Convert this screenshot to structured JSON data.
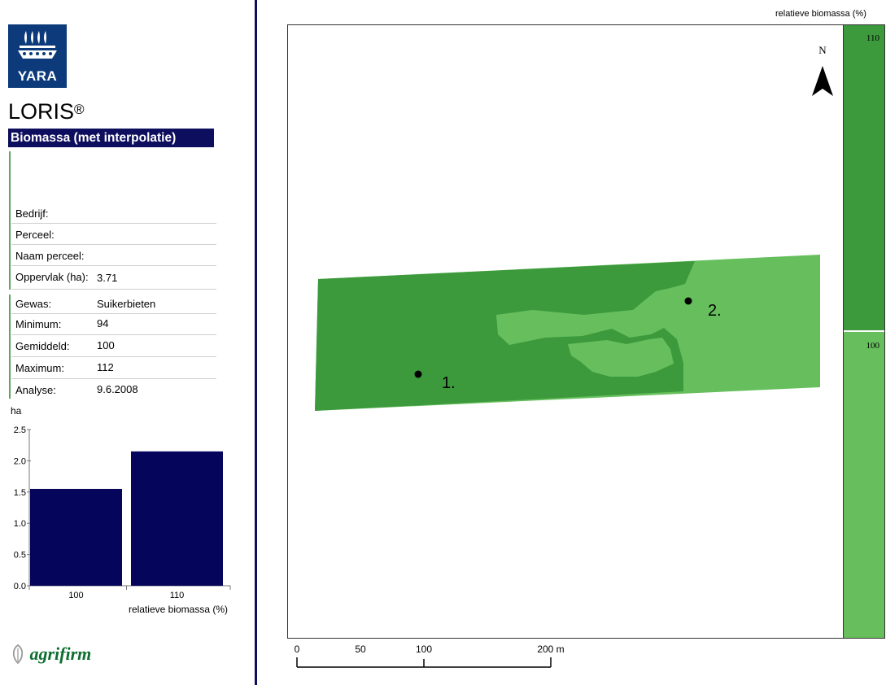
{
  "app": {
    "brand": "YARA",
    "title": "LORIS",
    "title_mark": "®",
    "subtitle": "Biomassa (met interpolatie)"
  },
  "info": {
    "bedrijf_label": "Bedrijf:",
    "bedrijf_value": "",
    "perceel_label": "Perceel:",
    "perceel_value": "",
    "naam_perceel_label": "Naam perceel:",
    "naam_perceel_value": "",
    "oppervlak_label": "Oppervlak (ha):",
    "oppervlak_value": "3.71",
    "gewas_label": "Gewas:",
    "gewas_value": "Suikerbieten",
    "minimum_label": "Minimum:",
    "minimum_value": "94",
    "gemiddeld_label": "Gemiddeld:",
    "gemiddeld_value": "100",
    "maximum_label": "Maximum:",
    "maximum_value": "112",
    "analyse_label": "Analyse:",
    "analyse_value": "9.6.2008"
  },
  "chart_data": {
    "type": "bar",
    "categories": [
      "100",
      "110"
    ],
    "values": [
      1.55,
      2.15
    ],
    "ylabel": "ha",
    "xlabel": "relatieve biomassa (%)",
    "yticks": [
      "0.0",
      "0.5",
      "1.0",
      "1.5",
      "2.0",
      "2.5"
    ],
    "ylim": [
      0,
      2.5
    ],
    "bar_color": "#05055c",
    "grid": false
  },
  "map": {
    "legend_title": "relatieve biomassa (%)",
    "legend_items": [
      {
        "label": "110",
        "color": "#3c9a3c"
      },
      {
        "label": "100",
        "color": "#66bf5c"
      }
    ],
    "north_label": "N",
    "sample_points": [
      "1.",
      "2."
    ],
    "scalebar": {
      "ticks": [
        "0",
        "50",
        "100",
        "200 m"
      ]
    },
    "colors": {
      "field_dark": "#3c9a3c",
      "field_light": "#66bf5c"
    }
  },
  "footer": {
    "partner_logo": "agrifirm"
  }
}
